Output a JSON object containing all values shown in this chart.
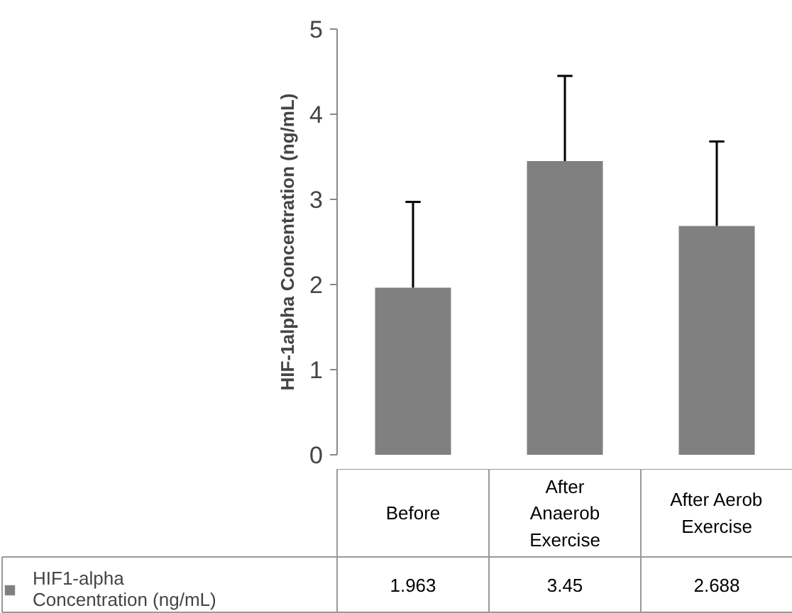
{
  "chart_data": {
    "type": "bar",
    "ylabel": "HIF-1alpha Concentration (ng/mL)",
    "categories": [
      "Before",
      "After Anaerob Exercise",
      "After Aerob Exercise"
    ],
    "series": [
      {
        "name": "HIF1-alpha Concentration (ng/mL)",
        "color": "#808080",
        "values": [
          1.963,
          3.45,
          2.688
        ],
        "errors": [
          [
            1.963,
            2.97
          ],
          [
            3.45,
            4.45
          ],
          [
            2.688,
            3.68
          ]
        ]
      }
    ],
    "ylim": [
      0,
      5
    ],
    "yticks": [
      0,
      1,
      2,
      3,
      4,
      5
    ],
    "data_labels": true,
    "legend": "bottom"
  }
}
